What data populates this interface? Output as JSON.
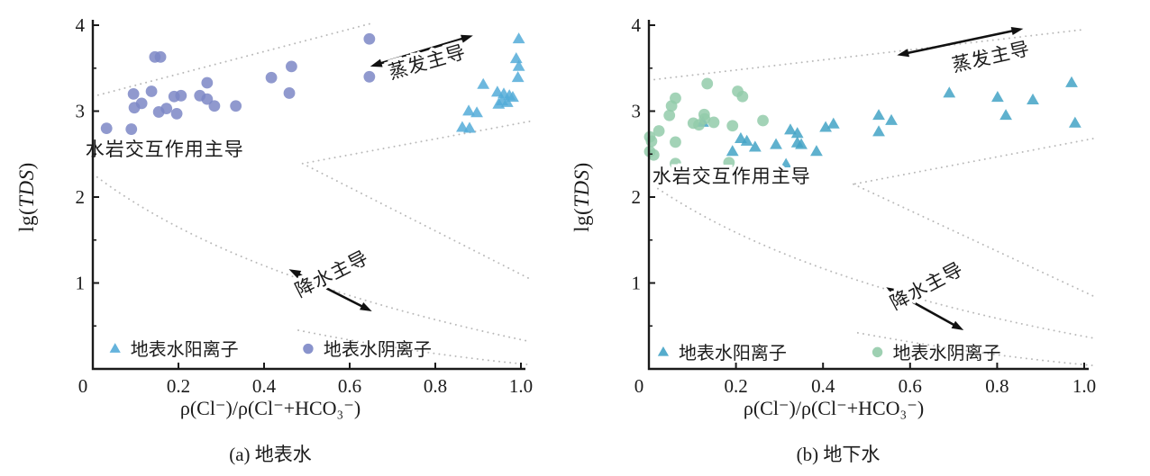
{
  "chart_data": [
    {
      "type": "scatter",
      "title": "(a) 地表水",
      "xlabel": "ρ(Cl⁻)/ρ(Cl⁻+HCO₃⁻)",
      "ylabel_parts": {
        "pre": "lg(",
        "italic": "TDS",
        "post": ")"
      },
      "xlim": [
        0,
        1.0
      ],
      "ylim": [
        0,
        4
      ],
      "xticks": [
        "0",
        "0.2",
        "0.4",
        "0.6",
        "0.8",
        "1.0"
      ],
      "yticks": [
        "1",
        "2",
        "3",
        "4"
      ],
      "yticks_minor": [
        0.5,
        1.5,
        2.5,
        3.5
      ],
      "grid": false,
      "axis_color": "#1a1a1a",
      "boundary_color": "#b9b9b9",
      "series": [
        {
          "name": "地表水阳离子",
          "marker": "triangle",
          "color": "#54abd8",
          "points": [
            [
              0.995,
              3.84
            ],
            [
              0.989,
              3.61
            ],
            [
              0.995,
              3.52
            ],
            [
              0.993,
              3.39
            ],
            [
              0.912,
              3.31
            ],
            [
              0.945,
              3.22
            ],
            [
              0.96,
              3.2
            ],
            [
              0.973,
              3.18
            ],
            [
              0.981,
              3.16
            ],
            [
              0.956,
              3.12
            ],
            [
              0.968,
              3.1
            ],
            [
              0.948,
              3.08
            ],
            [
              0.878,
              3.0
            ],
            [
              0.897,
              2.98
            ],
            [
              0.863,
              2.81
            ],
            [
              0.88,
              2.8
            ]
          ]
        },
        {
          "name": "地表水阴离子",
          "marker": "circle",
          "color": "#7c87c6",
          "points": [
            [
              0.032,
              2.8
            ],
            [
              0.09,
              2.79
            ],
            [
              0.095,
              3.2
            ],
            [
              0.097,
              3.04
            ],
            [
              0.114,
              3.09
            ],
            [
              0.137,
              3.23
            ],
            [
              0.145,
              3.63
            ],
            [
              0.158,
              3.63
            ],
            [
              0.154,
              2.99
            ],
            [
              0.172,
              3.03
            ],
            [
              0.19,
              3.17
            ],
            [
              0.206,
              3.18
            ],
            [
              0.196,
              2.97
            ],
            [
              0.25,
              3.18
            ],
            [
              0.267,
              3.14
            ],
            [
              0.267,
              3.33
            ],
            [
              0.284,
              3.06
            ],
            [
              0.334,
              3.06
            ],
            [
              0.417,
              3.39
            ],
            [
              0.464,
              3.52
            ],
            [
              0.459,
              3.21
            ],
            [
              0.646,
              3.84
            ],
            [
              0.646,
              3.4
            ]
          ]
        }
      ],
      "boundaries": [
        {
          "shape": "line",
          "pts": [
            [
              0,
              3.17
            ],
            [
              0.65,
              4.02
            ]
          ]
        },
        {
          "shape": "line",
          "pts": [
            [
              1.02,
              2.88
            ],
            [
              0.49,
              2.39
            ]
          ]
        },
        {
          "shape": "line",
          "pts": [
            [
              0.49,
              2.39
            ],
            [
              1.02,
              1.05
            ]
          ]
        },
        {
          "shape": "curve",
          "pts": [
            [
              0,
              2.27
            ],
            [
              0.32,
              1.05
            ],
            [
              1.02,
              0.32
            ]
          ]
        },
        {
          "shape": "curve",
          "pts": [
            [
              0.48,
              0.45
            ],
            [
              0.75,
              0.18
            ],
            [
              1.02,
              0.05
            ]
          ]
        }
      ],
      "annotations": [
        {
          "text": "蒸发主导",
          "x": 0.785,
          "y": 3.5,
          "angle": -16
        },
        {
          "text": "水岩交互作用主导",
          "x": 0.168,
          "y": 2.48,
          "angle": 0
        },
        {
          "text": "降水主导",
          "x": 0.565,
          "y": 1.04,
          "angle": -27
        }
      ],
      "arrows": [
        {
          "x1": 0.648,
          "y1": 3.52,
          "x2": 0.888,
          "y2": 3.88
        },
        {
          "x1": 0.458,
          "y1": 1.16,
          "x2": 0.652,
          "y2": 0.67
        }
      ],
      "legend": [
        {
          "label": "地表水阳离子",
          "marker": "triangle",
          "x": 0.052,
          "y": 0.235
        },
        {
          "label": "地表水阴离子",
          "marker": "circle",
          "x": 0.503,
          "y": 0.235
        }
      ]
    },
    {
      "type": "scatter",
      "title": "(b) 地下水",
      "xlabel": "ρ(Cl⁻)/ρ(Cl⁻+HCO₃⁻)",
      "ylabel_parts": {
        "pre": "lg(",
        "italic": "TDS",
        "post": ")"
      },
      "xlim": [
        0,
        1.0
      ],
      "ylim": [
        0,
        4
      ],
      "xticks": [
        "0",
        "0.2",
        "0.4",
        "0.6",
        "0.8",
        "1.0"
      ],
      "yticks": [
        "1",
        "2",
        "3",
        "4"
      ],
      "yticks_minor": [
        0.5,
        1.5,
        2.5,
        3.5
      ],
      "grid": false,
      "axis_color": "#1a1a1a",
      "boundary_color": "#b9b9b9",
      "series": [
        {
          "name": "地表水阳离子",
          "marker": "triangle",
          "color": "#43a3c6",
          "points": [
            [
              0.124,
              2.87
            ],
            [
              0.211,
              2.68
            ],
            [
              0.225,
              2.65
            ],
            [
              0.192,
              2.53
            ],
            [
              0.244,
              2.58
            ],
            [
              0.292,
              2.61
            ],
            [
              0.325,
              2.78
            ],
            [
              0.341,
              2.74
            ],
            [
              0.341,
              2.63
            ],
            [
              0.35,
              2.61
            ],
            [
              0.385,
              2.53
            ],
            [
              0.406,
              2.81
            ],
            [
              0.424,
              2.85
            ],
            [
              0.315,
              2.38
            ],
            [
              0.528,
              2.95
            ],
            [
              0.557,
              2.89
            ],
            [
              0.528,
              2.76
            ],
            [
              0.69,
              3.21
            ],
            [
              0.801,
              3.16
            ],
            [
              0.82,
              2.95
            ],
            [
              0.882,
              3.13
            ],
            [
              0.971,
              3.33
            ],
            [
              0.979,
              2.86
            ]
          ]
        },
        {
          "name": "地表水阴离子",
          "marker": "circle",
          "color": "#93cbaa",
          "points": [
            [
              0.134,
              3.32
            ],
            [
              0.204,
              3.23
            ],
            [
              0.215,
              3.17
            ],
            [
              0.061,
              3.15
            ],
            [
              0.052,
              3.06
            ],
            [
              0.047,
              2.95
            ],
            [
              0.127,
              2.96
            ],
            [
              0.128,
              2.91
            ],
            [
              0.102,
              2.86
            ],
            [
              0.115,
              2.84
            ],
            [
              0.149,
              2.87
            ],
            [
              0.192,
              2.83
            ],
            [
              0.262,
              2.89
            ],
            [
              0.023,
              2.77
            ],
            [
              0.002,
              2.7
            ],
            [
              0.006,
              2.65
            ],
            [
              0.061,
              2.64
            ],
            [
              0.002,
              2.53
            ],
            [
              0.011,
              2.49
            ],
            [
              0.061,
              2.39
            ],
            [
              0.184,
              2.4
            ]
          ]
        }
      ],
      "boundaries": [
        {
          "shape": "line",
          "pts": [
            [
              0,
              3.36
            ],
            [
              1.0,
              3.95
            ]
          ]
        },
        {
          "shape": "line",
          "pts": [
            [
              1.02,
              2.68
            ],
            [
              0.47,
              2.15
            ]
          ]
        },
        {
          "shape": "line",
          "pts": [
            [
              0.47,
              2.15
            ],
            [
              1.02,
              0.85
            ]
          ]
        },
        {
          "shape": "curve",
          "pts": [
            [
              0,
              2.17
            ],
            [
              0.33,
              1.0
            ],
            [
              1.02,
              0.36
            ]
          ]
        },
        {
          "shape": "curve",
          "pts": [
            [
              0.48,
              0.42
            ],
            [
              0.76,
              0.16
            ],
            [
              1.02,
              0.04
            ]
          ]
        }
      ],
      "annotations": [
        {
          "text": "蒸发主导",
          "x": 0.789,
          "y": 3.56,
          "angle": -13
        },
        {
          "text": "水岩交互作用主导",
          "x": 0.19,
          "y": 2.17,
          "angle": 0
        },
        {
          "text": "降水主导",
          "x": 0.645,
          "y": 0.9,
          "angle": -28
        }
      ],
      "arrows": [
        {
          "x1": 0.57,
          "y1": 3.65,
          "x2": 0.86,
          "y2": 3.96
        },
        {
          "x1": 0.545,
          "y1": 0.95,
          "x2": 0.723,
          "y2": 0.45
        }
      ],
      "legend": [
        {
          "label": "地表水阳离子",
          "marker": "triangle",
          "x": 0.033,
          "y": 0.195
        },
        {
          "label": "地表水阴离子",
          "marker": "circle",
          "x": 0.525,
          "y": 0.195
        }
      ]
    }
  ]
}
